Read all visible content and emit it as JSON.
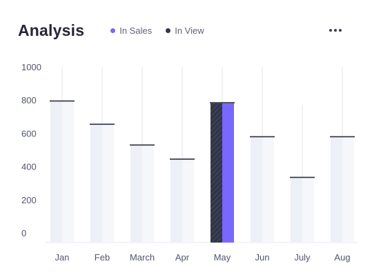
{
  "header": {
    "title": "Analysis",
    "more_label": "•••"
  },
  "legend": [
    {
      "name": "In Sales",
      "color": "#7a67ff"
    },
    {
      "name": "In View",
      "color": "#32344a"
    }
  ],
  "chart_data": {
    "type": "bar",
    "categories": [
      "Jan",
      "Feb",
      "March",
      "Apr",
      "May",
      "Jun",
      "July",
      "Aug"
    ],
    "values": [
      790,
      650,
      525,
      440,
      780,
      575,
      330,
      575
    ],
    "whisker_top": [
      1000,
      1000,
      1000,
      1000,
      1000,
      1000,
      770,
      1000
    ],
    "highlighted_category": "May",
    "ylim": [
      0,
      1000
    ],
    "yticks": [
      0,
      200,
      400,
      600,
      800,
      1000
    ],
    "series": [
      {
        "name": "In Sales",
        "color": "#7a67ff"
      },
      {
        "name": "In View",
        "color": "#32344a"
      }
    ],
    "colors": {
      "bar_light": "#eef0f7",
      "bar_light_alt": "#f6f7fb",
      "cap_line": "#2a2c38",
      "whisker": "#e3e5ec",
      "axis": "#e8eaf0"
    },
    "grid": false
  }
}
